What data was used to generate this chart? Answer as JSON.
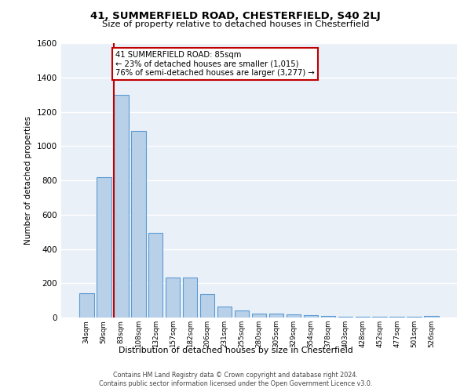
{
  "title1": "41, SUMMERFIELD ROAD, CHESTERFIELD, S40 2LJ",
  "title2": "Size of property relative to detached houses in Chesterfield",
  "xlabel": "Distribution of detached houses by size in Chesterfield",
  "ylabel": "Number of detached properties",
  "categories": [
    "34sqm",
    "59sqm",
    "83sqm",
    "108sqm",
    "132sqm",
    "157sqm",
    "182sqm",
    "206sqm",
    "231sqm",
    "255sqm",
    "280sqm",
    "305sqm",
    "329sqm",
    "354sqm",
    "378sqm",
    "403sqm",
    "428sqm",
    "452sqm",
    "477sqm",
    "501sqm",
    "526sqm"
  ],
  "values": [
    140,
    820,
    1300,
    1090,
    495,
    235,
    235,
    135,
    65,
    42,
    25,
    22,
    20,
    12,
    8,
    5,
    5,
    5,
    5,
    5,
    8
  ],
  "bar_color": "#b8d0e8",
  "bar_edge_color": "#5b9bd5",
  "property_line_index": 2,
  "property_line_color": "#c00000",
  "annotation_text": "41 SUMMERFIELD ROAD: 85sqm\n← 23% of detached houses are smaller (1,015)\n76% of semi-detached houses are larger (3,277) →",
  "annotation_box_color": "#c00000",
  "ylim": [
    0,
    1600
  ],
  "yticks": [
    0,
    200,
    400,
    600,
    800,
    1000,
    1200,
    1400,
    1600
  ],
  "footnote1": "Contains HM Land Registry data © Crown copyright and database right 2024.",
  "footnote2": "Contains public sector information licensed under the Open Government Licence v3.0.",
  "plot_bg_color": "#eaf0f8"
}
